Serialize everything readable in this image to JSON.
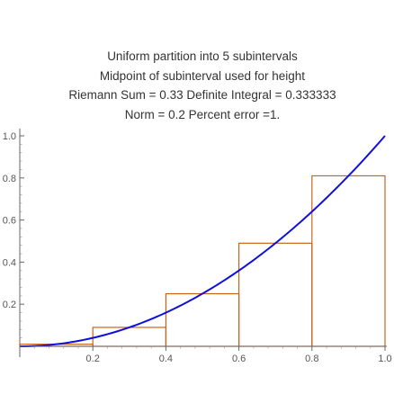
{
  "chart_data": {
    "type": "line",
    "title_lines": [
      "Uniform partition into 5 subintervals",
      "Midpoint of subinterval used for height",
      "Riemann Sum = 0.33    Definite Integral = 0.333333",
      "Norm = 0.2    Percent error =1."
    ],
    "xlim": [
      0,
      1
    ],
    "ylim": [
      0,
      1
    ],
    "x_ticks": [
      "0.2",
      "0.4",
      "0.6",
      "0.8",
      "1.0"
    ],
    "y_ticks": [
      "0.2",
      "0.4",
      "0.6",
      "0.8",
      "1.0"
    ],
    "curve_function": "x^2",
    "curve_color": "#1010dd",
    "bar_color": "#c8651b",
    "bars": [
      {
        "x0": 0.0,
        "x1": 0.2,
        "height": 0.01
      },
      {
        "x0": 0.2,
        "x1": 0.4,
        "height": 0.09
      },
      {
        "x0": 0.4,
        "x1": 0.6,
        "height": 0.25
      },
      {
        "x0": 0.6,
        "x1": 0.8,
        "height": 0.49
      },
      {
        "x0": 0.8,
        "x1": 1.0,
        "height": 0.81
      }
    ]
  }
}
